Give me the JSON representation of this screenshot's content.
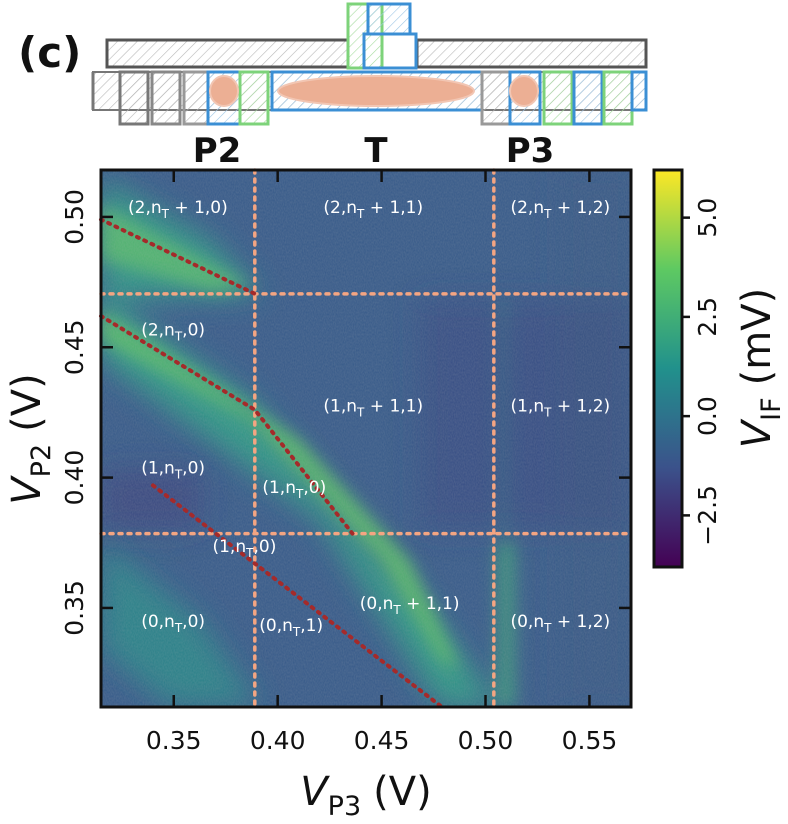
{
  "figure": {
    "panel_label": "(c)",
    "gate_labels": [
      "P2",
      "T",
      "P3"
    ]
  },
  "chart_data": {
    "type": "heatmap",
    "xlabel": {
      "symbol": "V",
      "subscript": "P3",
      "unit": "(V)"
    },
    "ylabel": {
      "symbol": "V",
      "subscript": "P2",
      "unit": "(V)"
    },
    "xlim": [
      0.315,
      0.57
    ],
    "ylim": [
      0.312,
      0.518
    ],
    "xticks": [
      0.35,
      0.4,
      0.45,
      0.5,
      0.55
    ],
    "xtick_labels": [
      "0.35",
      "0.40",
      "0.45",
      "0.50",
      "0.55"
    ],
    "yticks": [
      0.35,
      0.4,
      0.45,
      0.5
    ],
    "ytick_labels": [
      "0.35",
      "0.40",
      "0.45",
      "0.50"
    ],
    "colorbar": {
      "label": {
        "symbol": "V",
        "subscript": "IF",
        "unit": "(mV)"
      },
      "range": [
        -3.8,
        6.2
      ],
      "ticks": [
        -2.5,
        0.0,
        2.5,
        5.0
      ],
      "tick_labels": [
        "−2.5",
        "0.0",
        "2.5",
        "5.0"
      ],
      "colormap": "viridis",
      "colors": [
        "#440154",
        "#3b528b",
        "#21918c",
        "#5ec962",
        "#fde725"
      ]
    },
    "guide_lines": {
      "color": "#f4a582",
      "vertical_x": [
        0.389,
        0.504
      ],
      "horizontal_y": [
        0.4705,
        0.3785
      ]
    },
    "transition_lines": {
      "color": "#a52a2a",
      "lines": [
        {
          "from": [
            0.315,
            0.499
          ],
          "to": [
            0.389,
            0.4705
          ]
        },
        {
          "from": [
            0.315,
            0.462
          ],
          "to": [
            0.389,
            0.426
          ],
          "via": [
            0.436,
            0.3785
          ]
        },
        {
          "from": [
            0.34,
            0.397
          ],
          "to": [
            0.479,
            0.312
          ]
        }
      ]
    },
    "regions": [
      {
        "text": "(2,n",
        "sub": "T",
        "rest": " + 1,0)",
        "x": 0.352,
        "y": 0.5015
      },
      {
        "text": "(2,n",
        "sub": "T",
        "rest": " + 1,1)",
        "x": 0.446,
        "y": 0.5015
      },
      {
        "text": "(2,n",
        "sub": "T",
        "rest": " + 1,2)",
        "x": 0.536,
        "y": 0.5015
      },
      {
        "text": "(2,n",
        "sub": "T",
        "rest": ",0)",
        "x": 0.3497,
        "y": 0.4545
      },
      {
        "text": "(1,n",
        "sub": "T",
        "rest": " + 1,1)",
        "x": 0.446,
        "y": 0.4254
      },
      {
        "text": "(1,n",
        "sub": "T",
        "rest": " + 1,2)",
        "x": 0.536,
        "y": 0.4254
      },
      {
        "text": "(1,n",
        "sub": "T",
        "rest": ",0)",
        "x": 0.3497,
        "y": 0.4015
      },
      {
        "text": "(1,n",
        "sub": "T",
        "rest": ",0)",
        "x": 0.408,
        "y": 0.394
      },
      {
        "text": "(1,n",
        "sub": "T",
        "rest": ",0)",
        "x": 0.384,
        "y": 0.3715
      },
      {
        "text": "(0,n",
        "sub": "T",
        "rest": " + 1,1)",
        "x": 0.4635,
        "y": 0.3495
      },
      {
        "text": "(0,n",
        "sub": "T",
        "rest": ",0)",
        "x": 0.3497,
        "y": 0.3426
      },
      {
        "text": "(0,n",
        "sub": "T",
        "rest": ",1)",
        "x": 0.4065,
        "y": 0.3411
      },
      {
        "text": "(0,n",
        "sub": "T",
        "rest": " + 1,2)",
        "x": 0.536,
        "y": 0.3426
      }
    ]
  }
}
